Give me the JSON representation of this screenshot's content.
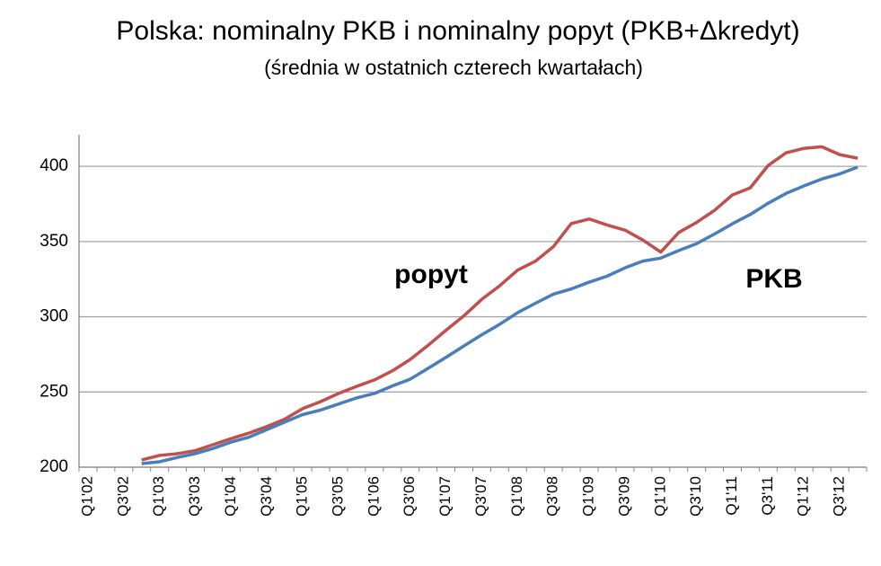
{
  "chart_data": {
    "type": "line",
    "title": "Polska: nominalny PKB i nominalny popyt (PKB+Δkredyt)",
    "subtitle": "(średnia w ostatnich czterech kwartałach)",
    "categories": [
      "Q1'02",
      null,
      "Q3'02",
      null,
      "Q1'03",
      null,
      "Q3'03",
      null,
      "Q1'04",
      null,
      "Q3'04",
      null,
      "Q1'05",
      null,
      "Q3'05",
      null,
      "Q1'06",
      null,
      "Q3'06",
      null,
      "Q1'07",
      null,
      "Q3'07",
      null,
      "Q1'08",
      null,
      "Q3'08",
      null,
      "Q1'09",
      null,
      "Q3'09",
      null,
      "Q1'10",
      null,
      "Q3'10",
      null,
      "Q1'11",
      null,
      "Q3'11",
      null,
      "Q1'12",
      null,
      "Q3'12",
      null
    ],
    "series": [
      {
        "name": "popyt",
        "color": "#c0504d",
        "values": [
          null,
          null,
          null,
          204.8,
          207.8,
          209,
          211,
          215,
          219,
          222.7,
          227,
          232,
          239,
          243.6,
          249,
          253.7,
          258,
          264,
          271.6,
          281,
          291,
          300.6,
          311.6,
          320.6,
          331,
          337,
          346.6,
          362,
          365,
          361,
          357.6,
          351,
          343,
          356,
          362.7,
          370.7,
          381,
          385.7,
          400.6,
          409,
          412,
          413,
          407.8,
          405.4
        ]
      },
      {
        "name": "PKB",
        "color": "#4a7ebb",
        "values": [
          null,
          null,
          null,
          202.4,
          203.6,
          206.5,
          209,
          212.5,
          216.7,
          220,
          225,
          230,
          235,
          238,
          242,
          246,
          249,
          254,
          258.5,
          265.7,
          273,
          280.6,
          288,
          295,
          302.7,
          309,
          315,
          318.5,
          323,
          327,
          332.5,
          337,
          339,
          344,
          348.6,
          355,
          361.8,
          368,
          375.5,
          382,
          387,
          391.6,
          395,
          399.5
        ]
      }
    ],
    "label_colors": [
      "#b22222",
      "#31849b"
    ],
    "ylim": [
      200,
      421
    ],
    "yticks": [
      200,
      250,
      300,
      350,
      400
    ],
    "grid": true
  }
}
